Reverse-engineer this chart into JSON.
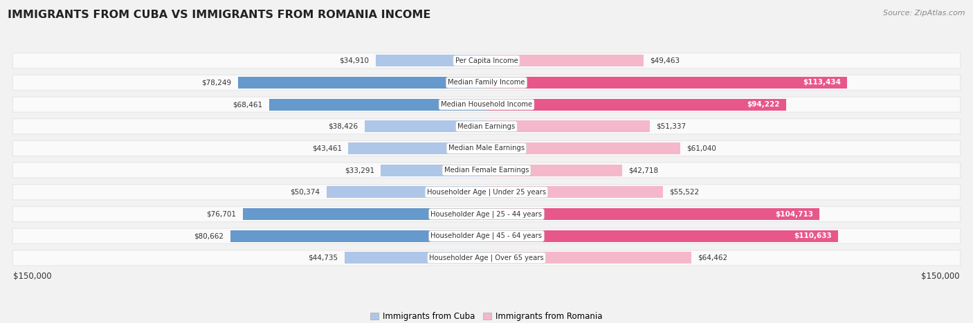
{
  "title": "IMMIGRANTS FROM CUBA VS IMMIGRANTS FROM ROMANIA INCOME",
  "source": "Source: ZipAtlas.com",
  "categories": [
    "Per Capita Income",
    "Median Family Income",
    "Median Household Income",
    "Median Earnings",
    "Median Male Earnings",
    "Median Female Earnings",
    "Householder Age | Under 25 years",
    "Householder Age | 25 - 44 years",
    "Householder Age | 45 - 64 years",
    "Householder Age | Over 65 years"
  ],
  "cuba_values": [
    34910,
    78249,
    68461,
    38426,
    43461,
    33291,
    50374,
    76701,
    80662,
    44735
  ],
  "romania_values": [
    49463,
    113434,
    94222,
    51337,
    61040,
    42718,
    55522,
    104713,
    110633,
    64462
  ],
  "cuba_color_light": "#aec6e8",
  "cuba_color_dark": "#6699cc",
  "romania_color_light": "#f5b8cb",
  "romania_color_dark": "#e8578a",
  "max_value": 150000,
  "bg_color": "#f2f2f2",
  "row_bg_color": "#e8e8e8",
  "row_inner_bg": "#fafafa",
  "label_cuba": "Immigrants from Cuba",
  "label_romania": "Immigrants from Romania",
  "bottom_label": "$150,000",
  "cuba_large_threshold": 65000,
  "romania_large_threshold": 90000
}
